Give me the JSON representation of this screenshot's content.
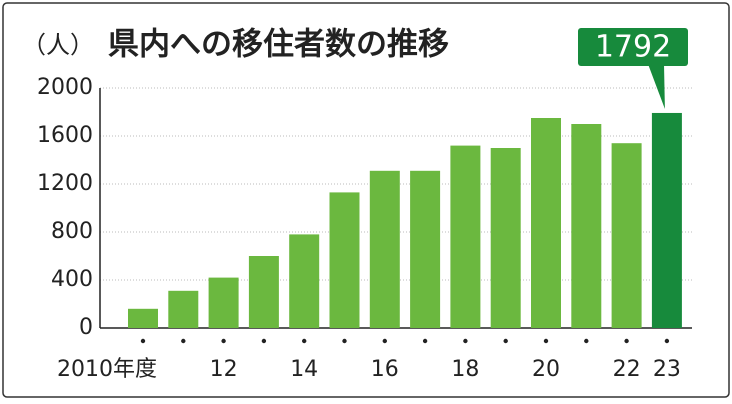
{
  "chart_data": {
    "type": "bar",
    "title": "県内への移住者数の推移",
    "y_label": "（人）",
    "categories": [
      "2010年度",
      null,
      "12",
      null,
      "14",
      null,
      "16",
      null,
      "18",
      null,
      "20",
      null,
      "22",
      "23"
    ],
    "values": [
      160,
      310,
      420,
      600,
      780,
      1130,
      1310,
      1310,
      1520,
      1500,
      1750,
      1700,
      1540,
      1792
    ],
    "colors": [
      "#6bb83f",
      "#6bb83f",
      "#6bb83f",
      "#6bb83f",
      "#6bb83f",
      "#6bb83f",
      "#6bb83f",
      "#6bb83f",
      "#6bb83f",
      "#6bb83f",
      "#6bb83f",
      "#6bb83f",
      "#6bb83f",
      "#178a3c"
    ],
    "ylim": [
      0,
      2000
    ],
    "yticks": [
      0,
      400,
      800,
      1200,
      1600,
      2000
    ],
    "grid": true
  }
}
